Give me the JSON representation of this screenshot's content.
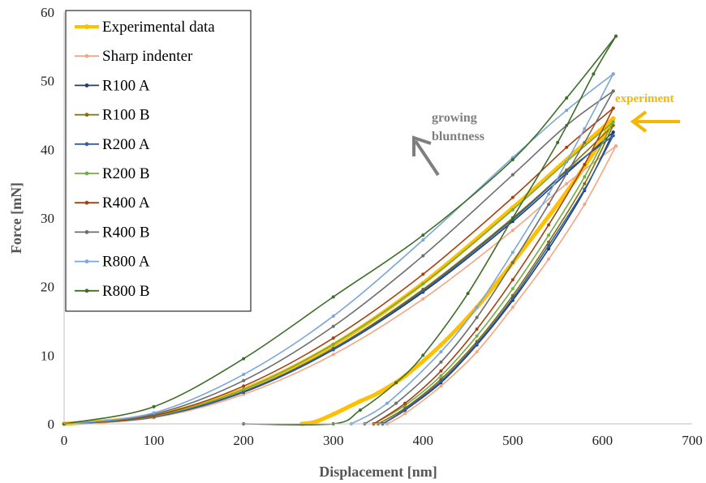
{
  "chart_data": {
    "type": "line",
    "title": "",
    "xlabel": "Displacement [nm]",
    "ylabel": "Force [mN]",
    "xlim": [
      0,
      700
    ],
    "ylim": [
      0,
      60
    ],
    "xticks": [
      0,
      100,
      200,
      300,
      400,
      500,
      600,
      700
    ],
    "yticks": [
      0,
      10,
      20,
      30,
      40,
      50,
      60
    ],
    "legend_position": "top-left",
    "grid": false,
    "annotations": [
      {
        "text": "growing",
        "color": "#7f7f7f"
      },
      {
        "text": "bluntness",
        "color": "#7f7f7f"
      },
      {
        "text": "experiment",
        "color": "#f5b800"
      }
    ],
    "series": [
      {
        "name": "Experimental data",
        "color": "#ffc000",
        "bold": true,
        "loading": [
          [
            0,
            0
          ],
          [
            100,
            1.2
          ],
          [
            200,
            5.0
          ],
          [
            300,
            11.5
          ],
          [
            400,
            20.5
          ],
          [
            500,
            31.5
          ],
          [
            560,
            38.5
          ],
          [
            612,
            44.5
          ]
        ],
        "unloading": [
          [
            265,
            0
          ],
          [
            280,
            0.3
          ],
          [
            300,
            1.4
          ],
          [
            330,
            3.3
          ],
          [
            350,
            4.5
          ],
          [
            380,
            7
          ],
          [
            420,
            11.5
          ],
          [
            460,
            17
          ],
          [
            500,
            23.5
          ],
          [
            550,
            32
          ],
          [
            590,
            39.5
          ],
          [
            612,
            44.5
          ]
        ]
      },
      {
        "name": "Sharp indenter",
        "color": "#f4a582",
        "bold": false,
        "loading": [
          [
            0,
            0
          ],
          [
            100,
            0.9
          ],
          [
            200,
            4.3
          ],
          [
            300,
            10.1
          ],
          [
            400,
            18.2
          ],
          [
            500,
            28.2
          ],
          [
            560,
            35
          ],
          [
            615,
            40.5
          ]
        ],
        "unloading": [
          [
            360,
            0
          ],
          [
            380,
            1.5
          ],
          [
            420,
            5.5
          ],
          [
            460,
            10.5
          ],
          [
            500,
            17
          ],
          [
            540,
            24
          ],
          [
            580,
            32
          ],
          [
            615,
            40.5
          ]
        ]
      },
      {
        "name": "R100 A",
        "color": "#1f3e6e",
        "bold": false,
        "loading": [
          [
            0,
            0
          ],
          [
            100,
            1.0
          ],
          [
            200,
            4.6
          ],
          [
            300,
            10.8
          ],
          [
            400,
            19.2
          ],
          [
            500,
            29.5
          ],
          [
            560,
            36.5
          ],
          [
            612,
            42.5
          ]
        ],
        "unloading": [
          [
            355,
            0
          ],
          [
            380,
            2
          ],
          [
            420,
            6
          ],
          [
            460,
            11.5
          ],
          [
            500,
            18
          ],
          [
            540,
            25.5
          ],
          [
            580,
            34
          ],
          [
            612,
            42.5
          ]
        ]
      },
      {
        "name": "R100 B",
        "color": "#8a6d00",
        "bold": false,
        "loading": [
          [
            0,
            0
          ],
          [
            100,
            1.05
          ],
          [
            200,
            4.7
          ],
          [
            300,
            11
          ],
          [
            400,
            19.6
          ],
          [
            500,
            30
          ],
          [
            560,
            37
          ],
          [
            612,
            43.5
          ]
        ],
        "unloading": [
          [
            350,
            0
          ],
          [
            380,
            2.3
          ],
          [
            420,
            6.5
          ],
          [
            460,
            12
          ],
          [
            500,
            18.7
          ],
          [
            540,
            26.5
          ],
          [
            580,
            35
          ],
          [
            612,
            43.5
          ]
        ]
      },
      {
        "name": "R200 A",
        "color": "#2e5fa8",
        "bold": false,
        "loading": [
          [
            0,
            0
          ],
          [
            100,
            1.0
          ],
          [
            200,
            4.7
          ],
          [
            300,
            10.9
          ],
          [
            400,
            19.4
          ],
          [
            500,
            29.8
          ],
          [
            560,
            36.8
          ],
          [
            612,
            42
          ]
        ],
        "unloading": [
          [
            355,
            0
          ],
          [
            380,
            2.1
          ],
          [
            420,
            6.2
          ],
          [
            460,
            11.7
          ],
          [
            500,
            18.3
          ],
          [
            540,
            26
          ],
          [
            580,
            34.2
          ],
          [
            612,
            42
          ]
        ]
      },
      {
        "name": "R200 B",
        "color": "#70ad47",
        "bold": false,
        "loading": [
          [
            0,
            0
          ],
          [
            100,
            1.1
          ],
          [
            200,
            5.0
          ],
          [
            300,
            11.6
          ],
          [
            400,
            20.4
          ],
          [
            500,
            31.2
          ],
          [
            560,
            38.2
          ],
          [
            612,
            44
          ]
        ],
        "unloading": [
          [
            345,
            0
          ],
          [
            380,
            2.7
          ],
          [
            420,
            7
          ],
          [
            460,
            12.8
          ],
          [
            500,
            19.7
          ],
          [
            540,
            27.5
          ],
          [
            580,
            36
          ],
          [
            612,
            44
          ]
        ]
      },
      {
        "name": "R400 A",
        "color": "#a5400f",
        "bold": false,
        "loading": [
          [
            0,
            0
          ],
          [
            100,
            1.2
          ],
          [
            200,
            5.5
          ],
          [
            300,
            12.5
          ],
          [
            400,
            21.8
          ],
          [
            500,
            33
          ],
          [
            560,
            40.3
          ],
          [
            612,
            46
          ]
        ],
        "unloading": [
          [
            345,
            0
          ],
          [
            380,
            3
          ],
          [
            420,
            7.7
          ],
          [
            460,
            13.8
          ],
          [
            500,
            21
          ],
          [
            540,
            29
          ],
          [
            580,
            37.8
          ],
          [
            612,
            46
          ]
        ]
      },
      {
        "name": "R400 B",
        "color": "#6d6d6d",
        "bold": false,
        "loading": [
          [
            0,
            0
          ],
          [
            100,
            1.4
          ],
          [
            200,
            6.3
          ],
          [
            300,
            14.2
          ],
          [
            400,
            24.5
          ],
          [
            500,
            36.3
          ],
          [
            560,
            43.5
          ],
          [
            612,
            48.5
          ]
        ],
        "unloading": [
          [
            335,
            0
          ],
          [
            370,
            3
          ],
          [
            420,
            9
          ],
          [
            460,
            15.5
          ],
          [
            500,
            23.5
          ],
          [
            540,
            32
          ],
          [
            580,
            41
          ],
          [
            612,
            48.5
          ]
        ]
      },
      {
        "name": "R800 A",
        "color": "#7aa6d8",
        "bold": false,
        "loading": [
          [
            0,
            0
          ],
          [
            100,
            1.6
          ],
          [
            200,
            7.2
          ],
          [
            300,
            15.7
          ],
          [
            400,
            26.8
          ],
          [
            500,
            38.8
          ],
          [
            560,
            45.7
          ],
          [
            612,
            51
          ]
        ],
        "unloading": [
          [
            320,
            0
          ],
          [
            360,
            3
          ],
          [
            420,
            10.5
          ],
          [
            460,
            17
          ],
          [
            500,
            25
          ],
          [
            540,
            33.5
          ],
          [
            580,
            43
          ],
          [
            612,
            51
          ]
        ]
      },
      {
        "name": "R800 B",
        "color": "#3c6e28",
        "bold": false,
        "loading": [
          [
            0,
            0
          ],
          [
            100,
            2.5
          ],
          [
            200,
            9.5
          ],
          [
            300,
            18.5
          ],
          [
            400,
            27.5
          ],
          [
            500,
            38.5
          ],
          [
            560,
            47.5
          ],
          [
            615,
            56.5
          ]
        ],
        "unloading": [
          [
            200,
            0
          ],
          [
            300,
            0
          ],
          [
            330,
            2
          ],
          [
            370,
            6
          ],
          [
            400,
            10
          ],
          [
            450,
            19
          ],
          [
            500,
            30
          ],
          [
            550,
            41
          ],
          [
            590,
            51
          ],
          [
            615,
            56.5
          ]
        ]
      }
    ]
  }
}
